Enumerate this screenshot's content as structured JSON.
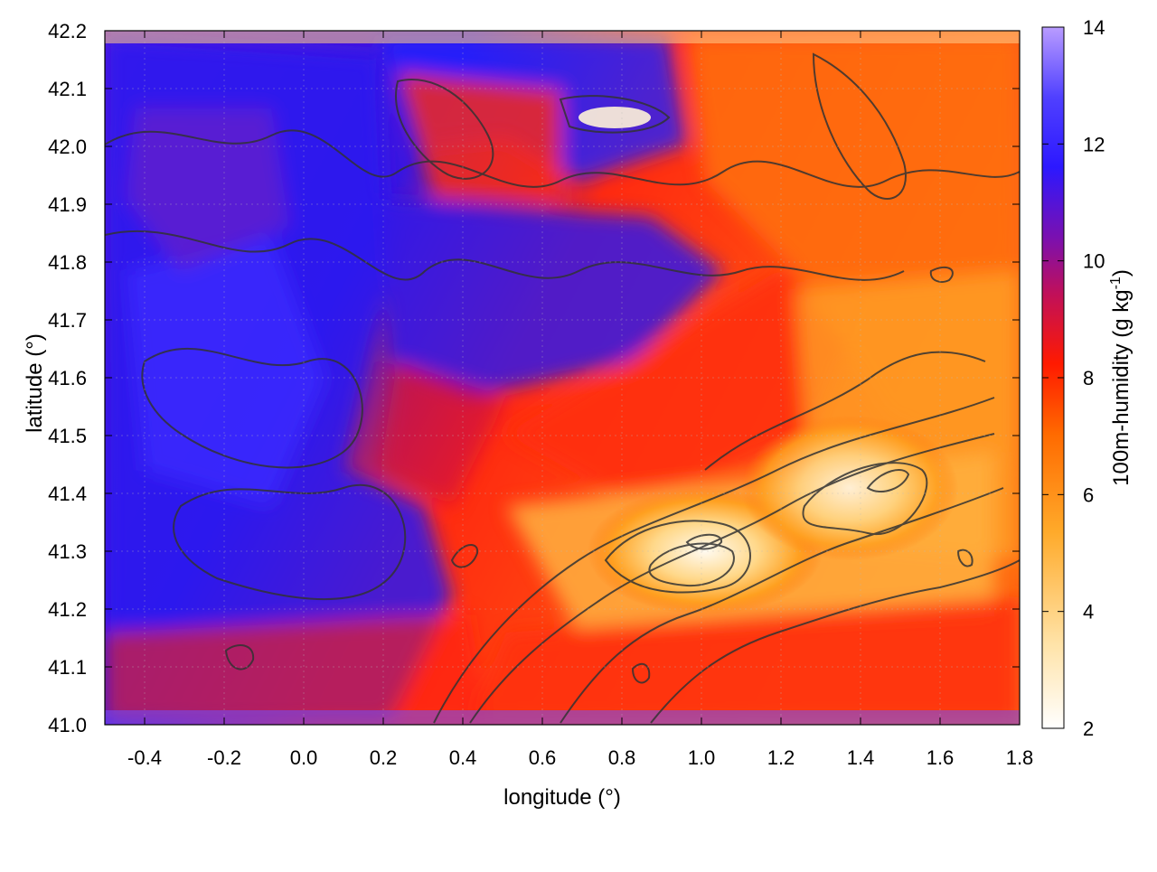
{
  "chart_data": {
    "type": "heatmap",
    "title": "",
    "xlabel": "longitude (°)",
    "ylabel": "latitude (°)",
    "xlim": [
      -0.5,
      1.8
    ],
    "ylim": [
      41.0,
      42.2
    ],
    "xticks": [
      "-0.4",
      "-0.2",
      "0.0",
      "0.2",
      "0.4",
      "0.6",
      "0.8",
      "1.0",
      "1.2",
      "1.4",
      "1.6",
      "1.8"
    ],
    "yticks": [
      "41.0",
      "41.1",
      "41.2",
      "41.3",
      "41.4",
      "41.5",
      "41.6",
      "41.7",
      "41.8",
      "41.9",
      "42.0",
      "42.1",
      "42.2"
    ],
    "colorbar": {
      "label": "100m-humidity (g kg",
      "label_sup": "-1",
      "label_end": ")",
      "range": [
        2,
        14
      ],
      "ticks": [
        "2",
        "4",
        "6",
        "8",
        "10",
        "12",
        "14"
      ],
      "palette": [
        "#ffffff",
        "#ffd98a",
        "#ffa21f",
        "#ff6a00",
        "#ff1e00",
        "#b4009a",
        "#3a16ff",
        "#2020ff",
        "#b99cff"
      ]
    },
    "regions_description_values": {
      "west_and_north_humidity": 10.5,
      "southeast_plain_humidity": 3.0,
      "coastal_strip_humidity": 7.5
    },
    "grid": true
  }
}
